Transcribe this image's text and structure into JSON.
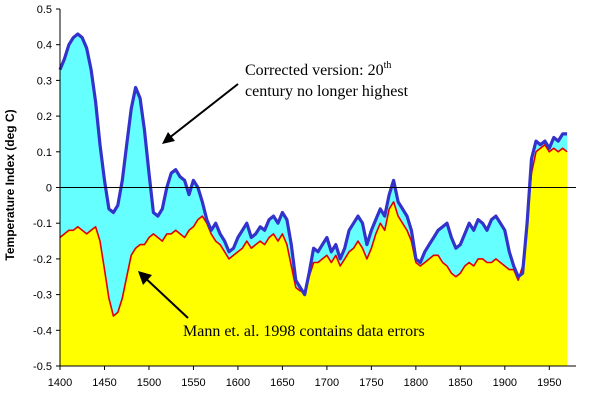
{
  "chart_data": {
    "type": "area",
    "ylabel": "Temperature Index (deg C)",
    "xlim": [
      1400,
      1980
    ],
    "ylim": [
      -0.5,
      0.5
    ],
    "x_ticks": [
      "1400",
      "1450",
      "1500",
      "1550",
      "1600",
      "1650",
      "1700",
      "1750",
      "1800",
      "1850",
      "1900",
      "1950"
    ],
    "y_ticks": [
      "0.5",
      "0.4",
      "0.3",
      "0.2",
      "0.1",
      "0",
      "-0.1",
      "-0.2",
      "-0.3",
      "-0.4",
      "-0.5"
    ],
    "grid": false,
    "annotations": [
      {
        "id": "corrected",
        "line1_main": "Corrected version: 20",
        "line1_sup": "th",
        "line2": "century no longer highest"
      },
      {
        "id": "mann",
        "text": "Mann et. al. 1998 contains data errors"
      }
    ],
    "series": [
      {
        "key": "corrected",
        "color": "#3333cc",
        "fill": "#66ffff",
        "x": [
          1400,
          1405,
          1410,
          1415,
          1420,
          1425,
          1430,
          1435,
          1440,
          1445,
          1450,
          1455,
          1460,
          1465,
          1470,
          1475,
          1480,
          1485,
          1490,
          1495,
          1500,
          1505,
          1510,
          1515,
          1520,
          1525,
          1530,
          1535,
          1540,
          1545,
          1550,
          1555,
          1560,
          1565,
          1570,
          1575,
          1580,
          1585,
          1590,
          1595,
          1600,
          1605,
          1610,
          1615,
          1620,
          1625,
          1630,
          1635,
          1640,
          1645,
          1650,
          1655,
          1660,
          1665,
          1670,
          1675,
          1680,
          1685,
          1690,
          1695,
          1700,
          1705,
          1710,
          1715,
          1720,
          1725,
          1730,
          1735,
          1740,
          1745,
          1750,
          1755,
          1760,
          1765,
          1770,
          1775,
          1780,
          1785,
          1790,
          1795,
          1800,
          1805,
          1810,
          1815,
          1820,
          1825,
          1830,
          1835,
          1840,
          1845,
          1850,
          1855,
          1860,
          1865,
          1870,
          1875,
          1880,
          1885,
          1890,
          1895,
          1900,
          1905,
          1910,
          1915,
          1920,
          1925,
          1930,
          1935,
          1940,
          1945,
          1950,
          1955,
          1960,
          1965,
          1970
        ],
        "values": [
          0.33,
          0.36,
          0.4,
          0.42,
          0.43,
          0.42,
          0.39,
          0.33,
          0.24,
          0.12,
          0.02,
          -0.06,
          -0.07,
          -0.05,
          0.02,
          0.12,
          0.22,
          0.28,
          0.25,
          0.16,
          0.04,
          -0.07,
          -0.08,
          -0.06,
          0.0,
          0.04,
          0.05,
          0.03,
          0.02,
          -0.02,
          0.02,
          0.0,
          -0.04,
          -0.09,
          -0.12,
          -0.1,
          -0.13,
          -0.15,
          -0.18,
          -0.17,
          -0.14,
          -0.12,
          -0.1,
          -0.14,
          -0.13,
          -0.11,
          -0.12,
          -0.09,
          -0.08,
          -0.1,
          -0.07,
          -0.09,
          -0.16,
          -0.26,
          -0.28,
          -0.3,
          -0.24,
          -0.17,
          -0.18,
          -0.16,
          -0.14,
          -0.18,
          -0.16,
          -0.2,
          -0.17,
          -0.12,
          -0.1,
          -0.08,
          -0.1,
          -0.16,
          -0.12,
          -0.09,
          -0.06,
          -0.08,
          -0.02,
          0.02,
          -0.04,
          -0.06,
          -0.08,
          -0.12,
          -0.2,
          -0.21,
          -0.18,
          -0.16,
          -0.14,
          -0.12,
          -0.11,
          -0.1,
          -0.14,
          -0.17,
          -0.16,
          -0.13,
          -0.1,
          -0.12,
          -0.09,
          -0.1,
          -0.12,
          -0.09,
          -0.08,
          -0.1,
          -0.12,
          -0.18,
          -0.22,
          -0.25,
          -0.24,
          -0.1,
          0.08,
          0.13,
          0.12,
          0.13,
          0.11,
          0.14,
          0.13,
          0.15,
          0.15
        ]
      },
      {
        "key": "mann",
        "color": "#e00000",
        "fill": "#ffff00",
        "x": [
          1400,
          1405,
          1410,
          1415,
          1420,
          1425,
          1430,
          1435,
          1440,
          1445,
          1450,
          1455,
          1460,
          1465,
          1470,
          1475,
          1480,
          1485,
          1490,
          1495,
          1500,
          1505,
          1510,
          1515,
          1520,
          1525,
          1530,
          1535,
          1540,
          1545,
          1550,
          1555,
          1560,
          1565,
          1570,
          1575,
          1580,
          1585,
          1590,
          1595,
          1600,
          1605,
          1610,
          1615,
          1620,
          1625,
          1630,
          1635,
          1640,
          1645,
          1650,
          1655,
          1660,
          1665,
          1670,
          1675,
          1680,
          1685,
          1690,
          1695,
          1700,
          1705,
          1710,
          1715,
          1720,
          1725,
          1730,
          1735,
          1740,
          1745,
          1750,
          1755,
          1760,
          1765,
          1770,
          1775,
          1780,
          1785,
          1790,
          1795,
          1800,
          1805,
          1810,
          1815,
          1820,
          1825,
          1830,
          1835,
          1840,
          1845,
          1850,
          1855,
          1860,
          1865,
          1870,
          1875,
          1880,
          1885,
          1890,
          1895,
          1900,
          1905,
          1910,
          1915,
          1920,
          1925,
          1930,
          1935,
          1940,
          1945,
          1950,
          1955,
          1960,
          1965,
          1970
        ],
        "values": [
          -0.14,
          -0.13,
          -0.12,
          -0.12,
          -0.11,
          -0.12,
          -0.13,
          -0.12,
          -0.11,
          -0.15,
          -0.23,
          -0.31,
          -0.36,
          -0.35,
          -0.31,
          -0.25,
          -0.19,
          -0.17,
          -0.16,
          -0.16,
          -0.14,
          -0.13,
          -0.14,
          -0.15,
          -0.13,
          -0.13,
          -0.12,
          -0.13,
          -0.14,
          -0.12,
          -0.11,
          -0.09,
          -0.08,
          -0.1,
          -0.13,
          -0.15,
          -0.16,
          -0.18,
          -0.2,
          -0.19,
          -0.18,
          -0.17,
          -0.15,
          -0.17,
          -0.16,
          -0.15,
          -0.16,
          -0.14,
          -0.13,
          -0.15,
          -0.13,
          -0.16,
          -0.22,
          -0.28,
          -0.29,
          -0.29,
          -0.25,
          -0.21,
          -0.21,
          -0.2,
          -0.19,
          -0.21,
          -0.19,
          -0.22,
          -0.2,
          -0.18,
          -0.17,
          -0.15,
          -0.17,
          -0.2,
          -0.17,
          -0.13,
          -0.1,
          -0.12,
          -0.06,
          -0.04,
          -0.08,
          -0.1,
          -0.12,
          -0.15,
          -0.21,
          -0.22,
          -0.21,
          -0.2,
          -0.19,
          -0.19,
          -0.21,
          -0.22,
          -0.24,
          -0.25,
          -0.24,
          -0.22,
          -0.21,
          -0.22,
          -0.2,
          -0.2,
          -0.21,
          -0.21,
          -0.2,
          -0.21,
          -0.22,
          -0.23,
          -0.23,
          -0.26,
          -0.22,
          -0.1,
          0.04,
          0.1,
          0.11,
          0.12,
          0.1,
          0.11,
          0.1,
          0.11,
          0.1
        ]
      }
    ]
  }
}
